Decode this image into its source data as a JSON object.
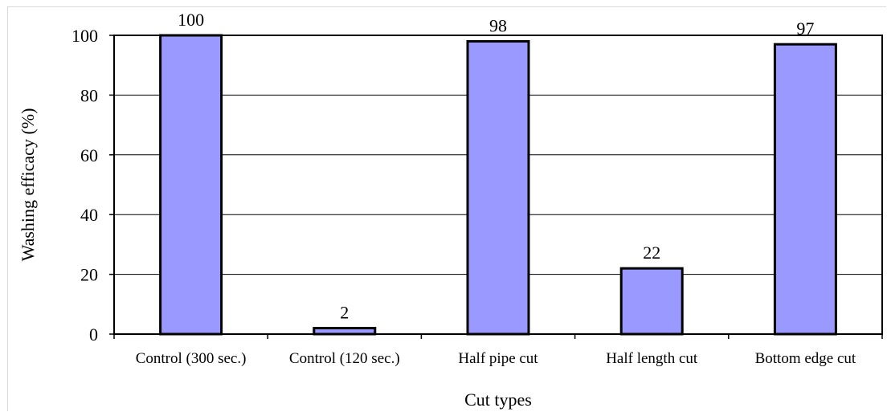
{
  "chart_data": {
    "type": "bar",
    "title": "",
    "xlabel": "Cut types",
    "ylabel": "Washing efficacy (%)",
    "categories": [
      "Control (300 sec.)",
      "Control (120 sec.)",
      "Half pipe cut",
      "Half length cut",
      "Bottom edge cut"
    ],
    "values": [
      100,
      2,
      98,
      22,
      97
    ],
    "data_labels": [
      "100",
      "2",
      "98",
      "22",
      "97"
    ],
    "ylim": [
      0,
      100
    ],
    "yticks": [
      "0",
      "20",
      "40",
      "60",
      "80",
      "100"
    ],
    "grid": true,
    "legend": "none",
    "colors": {
      "bar_fill": "#9999ff",
      "bar_stroke": "#000000",
      "grid": "#000000"
    }
  }
}
